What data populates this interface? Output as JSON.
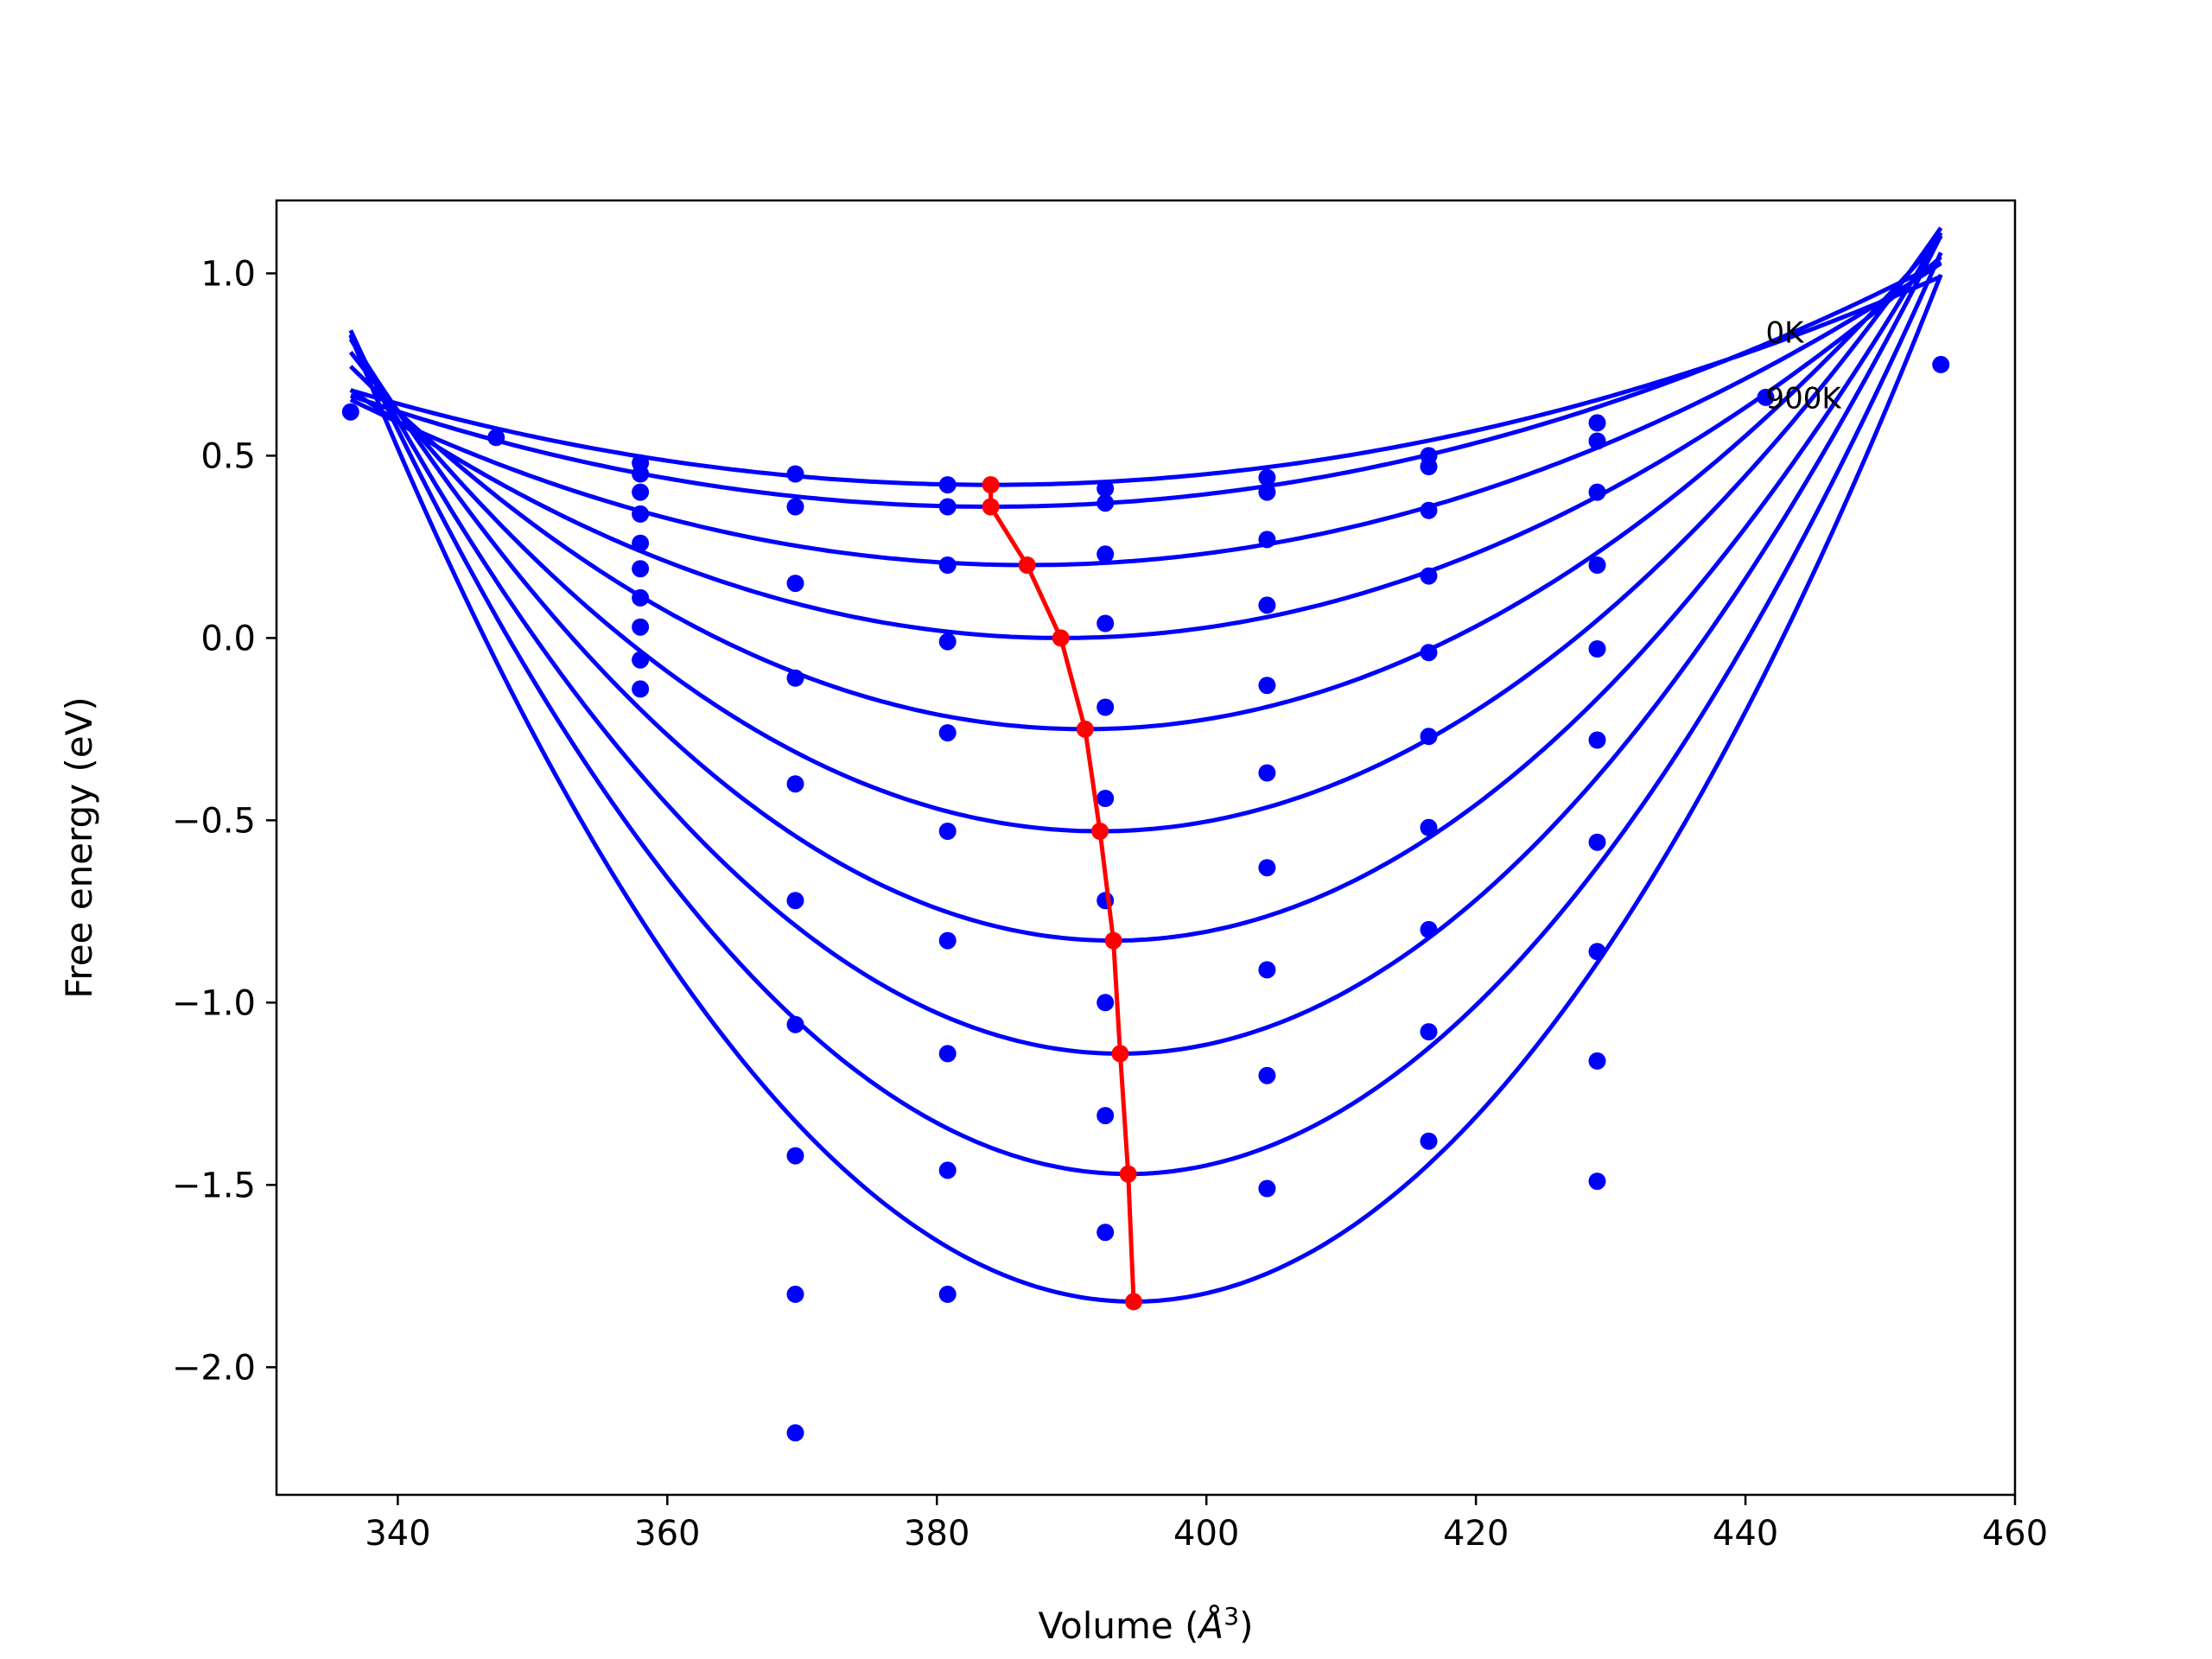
{
  "chart_data": {
    "type": "line",
    "xlabel": "Volume (",
    "xlabel_unit": "Å",
    "xlabel_sup": "3",
    "xlabel_close": ")",
    "ylabel": "Free energy (eV)",
    "xlim": [
      331,
      460
    ],
    "ylim": [
      -2.35,
      1.2
    ],
    "xticks": [
      340,
      360,
      380,
      400,
      420,
      440,
      460
    ],
    "xtick_labels": [
      "340",
      "360",
      "380",
      "400",
      "420",
      "440",
      "460"
    ],
    "yticks": [
      1.0,
      0.5,
      0.0,
      -0.5,
      -1.0,
      -1.5,
      -2.0
    ],
    "ytick_labels": [
      "1.0",
      "0.5",
      "0.0",
      "−0.5",
      "−1.0",
      "−1.5",
      "−2.0"
    ],
    "annotations": [
      {
        "text": "0K",
        "x": 441.5,
        "y": 0.81
      },
      {
        "text": "900K",
        "x": 441.5,
        "y": 0.63
      }
    ],
    "colors": {
      "fits": "#0000ff",
      "points": "#0000ff",
      "minima": "#ff0000",
      "axes": "#000000"
    },
    "grid": false,
    "fit_range": [
      336.5,
      454.5
    ],
    "series": [
      {
        "V0": 384.0,
        "E0": 0.42,
        "B": 0.000115,
        "points": [
          [
            336.5,
            0.62
          ],
          [
            347.3,
            0.55
          ],
          [
            358.0,
            0.48
          ],
          [
            369.5,
            0.45
          ],
          [
            380.8,
            0.42
          ],
          [
            392.5,
            0.41
          ],
          [
            404.5,
            0.44
          ],
          [
            416.5,
            0.5
          ],
          [
            429.0,
            0.59
          ],
          [
            441.5,
            0.66
          ],
          [
            454.5,
            0.75
          ]
        ]
      },
      {
        "V0": 384.0,
        "E0": 0.36,
        "B": 0.000135,
        "points": [
          [
            358.0,
            0.45
          ],
          [
            369.5,
            0.36
          ],
          [
            380.8,
            0.36
          ],
          [
            392.5,
            0.37
          ],
          [
            404.5,
            0.4
          ],
          [
            416.5,
            0.47
          ],
          [
            429.0,
            0.54
          ]
        ]
      },
      {
        "V0": 386.7,
        "E0": 0.2,
        "B": 0.00018,
        "points": [
          [
            358.0,
            0.4
          ],
          [
            358.0,
            0.34
          ],
          [
            380.8,
            0.2
          ],
          [
            392.5,
            0.23
          ],
          [
            404.5,
            0.27
          ],
          [
            416.5,
            0.35
          ],
          [
            429.0,
            0.4
          ]
        ]
      },
      {
        "V0": 389.2,
        "E0": 0.0,
        "B": 0.000245,
        "points": [
          [
            358.0,
            0.26
          ],
          [
            358.0,
            0.19
          ],
          [
            369.5,
            0.15
          ],
          [
            380.8,
            -0.01
          ],
          [
            392.5,
            0.04
          ],
          [
            404.5,
            0.09
          ],
          [
            416.5,
            0.17
          ],
          [
            429.0,
            0.2
          ]
        ]
      },
      {
        "V0": 391.0,
        "E0": -0.25,
        "B": 0.000335,
        "points": [
          [
            358.0,
            0.11
          ],
          [
            358.0,
            0.03
          ],
          [
            369.5,
            -0.11
          ],
          [
            380.8,
            -0.26
          ],
          [
            392.5,
            -0.19
          ],
          [
            404.5,
            -0.13
          ],
          [
            416.5,
            -0.04
          ],
          [
            429.0,
            -0.03
          ]
        ]
      },
      {
        "V0": 392.1,
        "E0": -0.53,
        "B": 0.000425,
        "points": [
          [
            358.0,
            -0.06
          ],
          [
            358.0,
            -0.14
          ],
          [
            369.5,
            -0.4
          ],
          [
            380.8,
            -0.53
          ],
          [
            392.5,
            -0.44
          ],
          [
            404.5,
            -0.37
          ],
          [
            416.5,
            -0.27
          ],
          [
            429.0,
            -0.28
          ]
        ]
      },
      {
        "V0": 393.1,
        "E0": -0.83,
        "B": 0.000515,
        "points": [
          [
            369.5,
            -0.72
          ],
          [
            380.8,
            -0.83
          ],
          [
            392.5,
            -0.72
          ],
          [
            404.5,
            -0.63
          ],
          [
            416.5,
            -0.52
          ],
          [
            429.0,
            -0.56
          ]
        ]
      },
      {
        "V0": 393.6,
        "E0": -1.14,
        "B": 0.000605,
        "points": [
          [
            369.5,
            -1.06
          ],
          [
            380.8,
            -1.14
          ],
          [
            392.5,
            -1.0
          ],
          [
            404.5,
            -0.91
          ],
          [
            416.5,
            -0.8
          ],
          [
            429.0,
            -0.86
          ]
        ]
      },
      {
        "V0": 394.2,
        "E0": -1.47,
        "B": 0.000695,
        "points": [
          [
            369.5,
            -1.42
          ],
          [
            380.8,
            -1.46
          ],
          [
            392.5,
            -1.31
          ],
          [
            404.5,
            -1.2
          ],
          [
            416.5,
            -1.08
          ],
          [
            429.0,
            -1.16
          ]
        ]
      },
      {
        "V0": 394.6,
        "E0": -1.82,
        "B": 0.000785,
        "points": [
          [
            369.5,
            -1.8
          ],
          [
            369.5,
            -2.18
          ],
          [
            380.8,
            -1.8
          ],
          [
            392.5,
            -1.63
          ],
          [
            404.5,
            -1.51
          ],
          [
            416.5,
            -1.38
          ],
          [
            429.0,
            -1.49
          ]
        ]
      }
    ],
    "minima_path": [
      [
        384.0,
        0.42
      ],
      [
        384.0,
        0.36
      ],
      [
        386.7,
        0.2
      ],
      [
        389.2,
        0.0
      ],
      [
        391.0,
        -0.25
      ],
      [
        392.1,
        -0.53
      ],
      [
        393.1,
        -0.83
      ],
      [
        393.6,
        -1.14
      ],
      [
        394.2,
        -1.47
      ],
      [
        394.6,
        -1.82
      ]
    ]
  }
}
